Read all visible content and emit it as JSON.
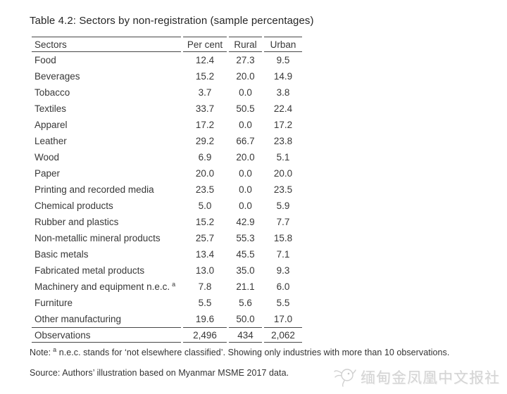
{
  "title": "Table 4.2: Sectors by non-registration (sample percentages)",
  "table": {
    "columns": [
      "Sectors",
      "Per cent",
      "Rural",
      "Urban"
    ],
    "rows": [
      {
        "label": "Food",
        "values": [
          "12.4",
          "27.3",
          "9.5"
        ]
      },
      {
        "label": "Beverages",
        "values": [
          "15.2",
          "20.0",
          "14.9"
        ]
      },
      {
        "label": "Tobacco",
        "values": [
          "3.7",
          "0.0",
          "3.8"
        ]
      },
      {
        "label": "Textiles",
        "values": [
          "33.7",
          "50.5",
          "22.4"
        ]
      },
      {
        "label": "Apparel",
        "values": [
          "17.2",
          "0.0",
          "17.2"
        ]
      },
      {
        "label": "Leather",
        "values": [
          "29.2",
          "66.7",
          "23.8"
        ]
      },
      {
        "label": "Wood",
        "values": [
          "6.9",
          "20.0",
          "5.1"
        ]
      },
      {
        "label": "Paper",
        "values": [
          "20.0",
          "0.0",
          "20.0"
        ]
      },
      {
        "label": "Printing and recorded media",
        "values": [
          "23.5",
          "0.0",
          "23.5"
        ]
      },
      {
        "label": "Chemical products",
        "values": [
          "5.0",
          "0.0",
          "5.9"
        ]
      },
      {
        "label": "Rubber and plastics",
        "values": [
          "15.2",
          "42.9",
          "7.7"
        ]
      },
      {
        "label": "Non-metallic mineral products",
        "values": [
          "25.7",
          "55.3",
          "15.8"
        ]
      },
      {
        "label": "Basic metals",
        "values": [
          "13.4",
          "45.5",
          "7.1"
        ]
      },
      {
        "label": "Fabricated metal products",
        "values": [
          "13.0",
          "35.0",
          "9.3"
        ]
      },
      {
        "label": "Machinery and equipment n.e.c.",
        "sup": "a",
        "values": [
          "7.8",
          "21.1",
          "6.0"
        ]
      },
      {
        "label": "Furniture",
        "values": [
          "5.5",
          "5.6",
          "5.5"
        ]
      },
      {
        "label": "Other manufacturing",
        "values": [
          "19.6",
          "50.0",
          "17.0"
        ]
      }
    ],
    "totals": [
      "Observations",
      "2,496",
      "434",
      "2,062"
    ]
  },
  "note": {
    "prefix": "Note:",
    "sup": "a",
    "body": "n.e.c. stands for ‘not elsewhere classified’. Showing only industries with more than 10 observations."
  },
  "source": "Source: Authors’ illustration based on Myanmar MSME 2017 data.",
  "watermark": {
    "text": "缅甸金凤凰中文报社",
    "icon": "phoenix-logo"
  },
  "colors": {
    "background": "#ffffff",
    "text": "#383838",
    "title": "#262626",
    "rule": "#474747",
    "watermark": "#d4d4d4"
  }
}
